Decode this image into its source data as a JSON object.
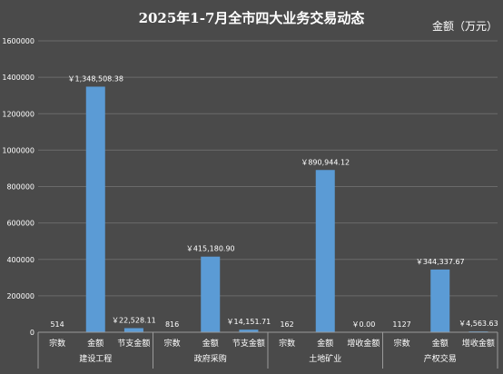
{
  "chart_data": {
    "type": "bar",
    "title": "2025年1-7月全市四大业务交易动态",
    "unit_label": "金额（万元）",
    "ylim": [
      0,
      1600000
    ],
    "yticks": [
      "0",
      "200000",
      "400000",
      "600000",
      "800000",
      "1000000",
      "1200000",
      "1400000",
      "1600000"
    ],
    "grid": true,
    "groups": [
      {
        "name": "建设工程",
        "bars": [
          {
            "category": "宗数",
            "value": 514,
            "label": "514"
          },
          {
            "category": "金额",
            "value": 1348508.38,
            "label": "￥1,348,508.38"
          },
          {
            "category": "节支金额",
            "value": 22528.11,
            "label": "￥22,528.11"
          }
        ]
      },
      {
        "name": "政府采购",
        "bars": [
          {
            "category": "宗数",
            "value": 816,
            "label": "816"
          },
          {
            "category": "金额",
            "value": 415180.9,
            "label": "￥415,180.90"
          },
          {
            "category": "节支金额",
            "value": 14151.71,
            "label": "￥14,151.71"
          }
        ]
      },
      {
        "name": "土地矿业",
        "bars": [
          {
            "category": "宗数",
            "value": 162,
            "label": "162"
          },
          {
            "category": "金额",
            "value": 890944.12,
            "label": "￥890,944.12"
          },
          {
            "category": "增收金额",
            "value": 0.0,
            "label": "￥0.00"
          }
        ]
      },
      {
        "name": "产权交易",
        "bars": [
          {
            "category": "宗数",
            "value": 1127,
            "label": "1127"
          },
          {
            "category": "金额",
            "value": 344337.67,
            "label": "￥344,337.67"
          },
          {
            "category": "增收金额",
            "value": 4563.63,
            "label": "￥4,563.63"
          }
        ]
      }
    ],
    "colors": {
      "bar": "#5b9bd5",
      "background": "#4a4a4a"
    }
  }
}
